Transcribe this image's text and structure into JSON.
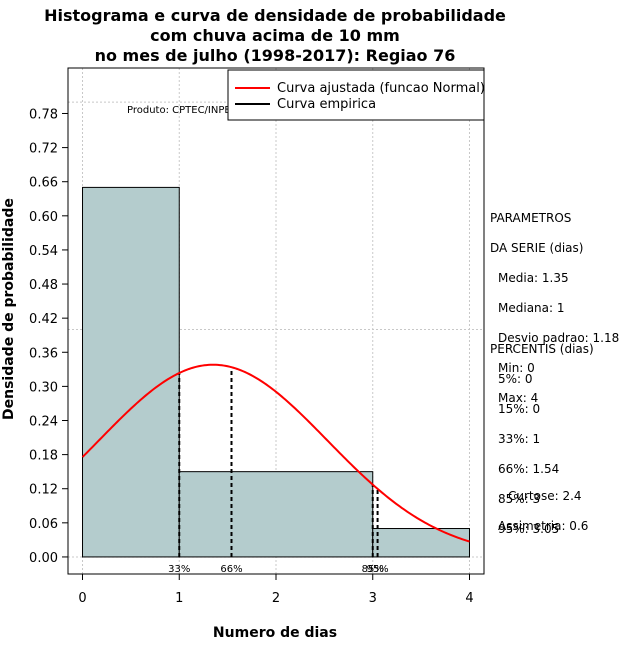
{
  "title_lines": [
    "Histograma e curva de densidade de probabilidade",
    "com chuva acima de 10 mm",
    "no mes de julho (1998-2017): Regiao 76"
  ],
  "produto": "Produto: CPTEC/INPE",
  "legend": {
    "fitted": "Curva ajustada (funcao Normal)",
    "empirical": "Curva empirica"
  },
  "params": {
    "header1": "PARAMETROS",
    "header2": "DA SERIE (dias)",
    "media": "Media: 1.35",
    "mediana": "Mediana: 1",
    "desvio": "Desvio padrao: 1.18",
    "min": "Min: 0",
    "max": "Max: 4"
  },
  "percentis": {
    "header": "PERCENTIS (dias)",
    "p5": "5%: 0",
    "p15": "15%: 0",
    "p33": "33%: 1",
    "p66": "66%: 1.54",
    "p85": "85%: 3",
    "p95": "95%: 3.05"
  },
  "shape": {
    "curtose": "Curtose: 2.4",
    "assimetria": "Assimetria: 0.6"
  },
  "chart_data": {
    "type": "bar",
    "xlabel": "Numero de dias",
    "ylabel": "Densidade de probabilidade",
    "xlim": [
      -0.15,
      4.15
    ],
    "ylim": [
      -0.03,
      0.86
    ],
    "xticks": [
      0,
      1,
      2,
      3,
      4
    ],
    "yticks": [
      0.0,
      0.06,
      0.12,
      0.18,
      0.24,
      0.3,
      0.36,
      0.42,
      0.48,
      0.54,
      0.6,
      0.66,
      0.72,
      0.78
    ],
    "ytick_labels": [
      "0.00",
      "0.06",
      "0.12",
      "0.18",
      "0.24",
      "0.30",
      "0.36",
      "0.42",
      "0.48",
      "0.54",
      "0.60",
      "0.66",
      "0.72",
      "0.78"
    ],
    "grid": true,
    "legend_position": "top-right",
    "bins": [
      {
        "from": 0,
        "to": 1,
        "density": 0.65
      },
      {
        "from": 1,
        "to": 3,
        "density": 0.15
      },
      {
        "from": 3,
        "to": 4,
        "density": 0.05
      }
    ],
    "bar_color": "#b4cccd",
    "normal_fit": {
      "mean": 1.35,
      "sd": 1.18,
      "color": "#ff0000"
    },
    "percentile_lines": [
      {
        "x": 1,
        "label": "33%"
      },
      {
        "x": 1.54,
        "label": "66%"
      },
      {
        "x": 3,
        "label": "85%"
      },
      {
        "x": 3.05,
        "label": "95%"
      }
    ]
  }
}
